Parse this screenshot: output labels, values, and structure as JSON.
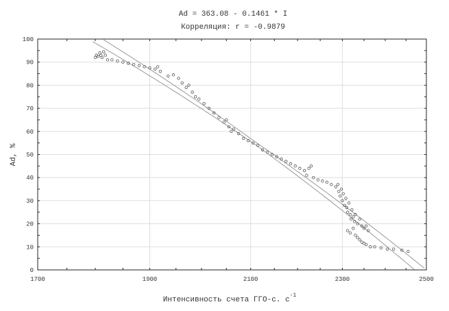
{
  "chart_data": {
    "type": "scatter",
    "title": "Ad = 363.08 - 0.1461 * I",
    "subtitle": "Корреляция: r = -0.9879",
    "xlabel": "Интенсивность счета ГГО-с. c",
    "xlabel_superscript": "-1",
    "ylabel": "Ad, %",
    "x_scale": "log",
    "xlim": [
      1700,
      2500
    ],
    "ylim": [
      0,
      100
    ],
    "x_ticks": [
      1700,
      1900,
      2100,
      2300,
      2500
    ],
    "y_ticks": [
      0,
      10,
      20,
      30,
      40,
      50,
      60,
      70,
      80,
      90,
      100
    ],
    "grid": true,
    "regression": {
      "intercept": 363.08,
      "slope": -0.1461,
      "r": -0.9879
    },
    "colors": {
      "points": "#555555",
      "line": "#999999",
      "grid": "#dddddd",
      "axis": "#222222"
    },
    "points": [
      [
        1800,
        92
      ],
      [
        1802,
        93
      ],
      [
        1805,
        92.5
      ],
      [
        1808,
        94
      ],
      [
        1810,
        93
      ],
      [
        1812,
        92
      ],
      [
        1815,
        94.5
      ],
      [
        1818,
        93
      ],
      [
        1822,
        91
      ],
      [
        1830,
        91
      ],
      [
        1840,
        90.5
      ],
      [
        1850,
        90
      ],
      [
        1860,
        89.5
      ],
      [
        1870,
        89
      ],
      [
        1880,
        88.5
      ],
      [
        1890,
        88
      ],
      [
        1900,
        87.5
      ],
      [
        1910,
        87
      ],
      [
        1915,
        88
      ],
      [
        1920,
        86
      ],
      [
        1935,
        84
      ],
      [
        1945,
        84.5
      ],
      [
        1955,
        83
      ],
      [
        1962,
        81
      ],
      [
        1970,
        79
      ],
      [
        1975,
        80
      ],
      [
        1982,
        77
      ],
      [
        1988,
        75
      ],
      [
        1995,
        74
      ],
      [
        2005,
        72
      ],
      [
        2015,
        70
      ],
      [
        2025,
        68
      ],
      [
        2035,
        66
      ],
      [
        2045,
        64
      ],
      [
        2050,
        65
      ],
      [
        2055,
        62
      ],
      [
        2060,
        60
      ],
      [
        2065,
        61
      ],
      [
        2075,
        59
      ],
      [
        2085,
        57
      ],
      [
        2095,
        56
      ],
      [
        2105,
        55
      ],
      [
        2115,
        54
      ],
      [
        2125,
        52
      ],
      [
        2135,
        51
      ],
      [
        2145,
        50
      ],
      [
        2155,
        49
      ],
      [
        2165,
        48
      ],
      [
        2175,
        47
      ],
      [
        2185,
        46
      ],
      [
        2195,
        45
      ],
      [
        2205,
        44
      ],
      [
        2215,
        43
      ],
      [
        2225,
        44
      ],
      [
        2230,
        45
      ],
      [
        2220,
        41
      ],
      [
        2235,
        40
      ],
      [
        2245,
        39
      ],
      [
        2255,
        38.5
      ],
      [
        2265,
        38
      ],
      [
        2275,
        37
      ],
      [
        2285,
        36
      ],
      [
        2290,
        37
      ],
      [
        2292,
        34
      ],
      [
        2295,
        32
      ],
      [
        2298,
        35
      ],
      [
        2300,
        30
      ],
      [
        2302,
        33
      ],
      [
        2305,
        28
      ],
      [
        2308,
        31
      ],
      [
        2310,
        27
      ],
      [
        2312,
        25
      ],
      [
        2315,
        29
      ],
      [
        2318,
        24
      ],
      [
        2320,
        22
      ],
      [
        2322,
        26
      ],
      [
        2325,
        23
      ],
      [
        2328,
        21
      ],
      [
        2330,
        24
      ],
      [
        2335,
        20
      ],
      [
        2340,
        22
      ],
      [
        2345,
        19
      ],
      [
        2350,
        18
      ],
      [
        2355,
        19
      ],
      [
        2360,
        17
      ],
      [
        2312,
        17
      ],
      [
        2318,
        16
      ],
      [
        2325,
        18
      ],
      [
        2330,
        15
      ],
      [
        2335,
        14
      ],
      [
        2340,
        13
      ],
      [
        2345,
        12
      ],
      [
        2350,
        11.5
      ],
      [
        2355,
        11
      ],
      [
        2365,
        10
      ],
      [
        2375,
        10
      ],
      [
        2390,
        9.5
      ],
      [
        2405,
        9
      ],
      [
        2420,
        9
      ],
      [
        2440,
        8.5
      ],
      [
        2455,
        8
      ]
    ]
  }
}
